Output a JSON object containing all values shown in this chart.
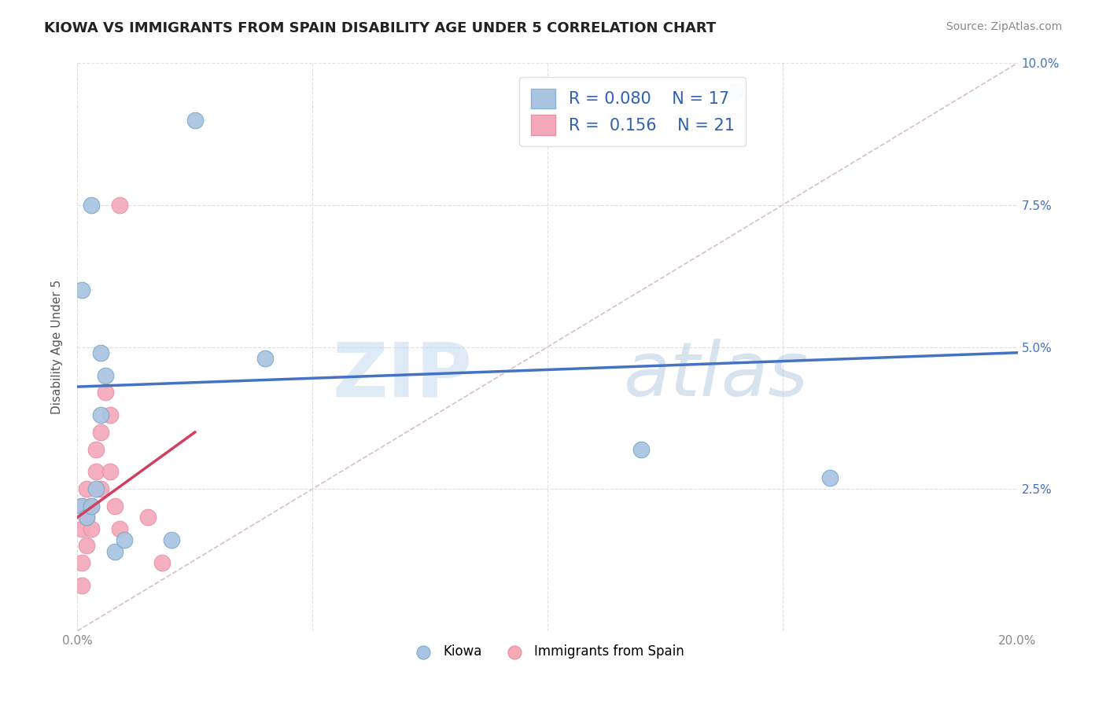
{
  "title": "KIOWA VS IMMIGRANTS FROM SPAIN DISABILITY AGE UNDER 5 CORRELATION CHART",
  "source": "Source: ZipAtlas.com",
  "xlabel": "",
  "ylabel": "Disability Age Under 5",
  "xlim": [
    0.0,
    0.2
  ],
  "ylim": [
    0.0,
    0.1
  ],
  "xticks": [
    0.0,
    0.05,
    0.1,
    0.15,
    0.2
  ],
  "xticklabels": [
    "0.0%",
    "",
    "",
    "",
    "20.0%"
  ],
  "yticks": [
    0.0,
    0.025,
    0.05,
    0.075,
    0.1
  ],
  "yticklabels": [
    "",
    "2.5%",
    "5.0%",
    "7.5%",
    "10.0%"
  ],
  "kiowa_R": 0.08,
  "kiowa_N": 17,
  "spain_R": 0.156,
  "spain_N": 21,
  "kiowa_color": "#a8c4e0",
  "spain_color": "#f4a8b8",
  "kiowa_line_color": "#4472c4",
  "spain_line_color": "#d04060",
  "diagonal_color": "#d8c0c0",
  "background_color": "#ffffff",
  "grid_color": "#e0e0e0",
  "watermark_zip": "ZIP",
  "watermark_atlas": "atlas",
  "kiowa_line_x0": 0.0,
  "kiowa_line_y0": 0.043,
  "kiowa_line_x1": 0.2,
  "kiowa_line_y1": 0.049,
  "spain_line_x0": 0.0,
  "spain_line_y0": 0.02,
  "spain_line_x1": 0.025,
  "spain_line_y1": 0.035,
  "kiowa_x": [
    0.001,
    0.001,
    0.002,
    0.003,
    0.004,
    0.005,
    0.006,
    0.008,
    0.01,
    0.02,
    0.04,
    0.12,
    0.14,
    0.003,
    0.025,
    0.16,
    0.005
  ],
  "kiowa_y": [
    0.022,
    0.06,
    0.02,
    0.022,
    0.025,
    0.038,
    0.045,
    0.014,
    0.016,
    0.016,
    0.048,
    0.032,
    0.095,
    0.075,
    0.09,
    0.027,
    0.049
  ],
  "spain_x": [
    0.001,
    0.001,
    0.001,
    0.001,
    0.002,
    0.002,
    0.002,
    0.003,
    0.003,
    0.004,
    0.004,
    0.005,
    0.005,
    0.006,
    0.007,
    0.007,
    0.008,
    0.009,
    0.009,
    0.015,
    0.018
  ],
  "spain_y": [
    0.008,
    0.012,
    0.018,
    0.022,
    0.015,
    0.02,
    0.025,
    0.018,
    0.022,
    0.028,
    0.032,
    0.025,
    0.035,
    0.042,
    0.038,
    0.028,
    0.022,
    0.018,
    0.075,
    0.02,
    0.012
  ]
}
